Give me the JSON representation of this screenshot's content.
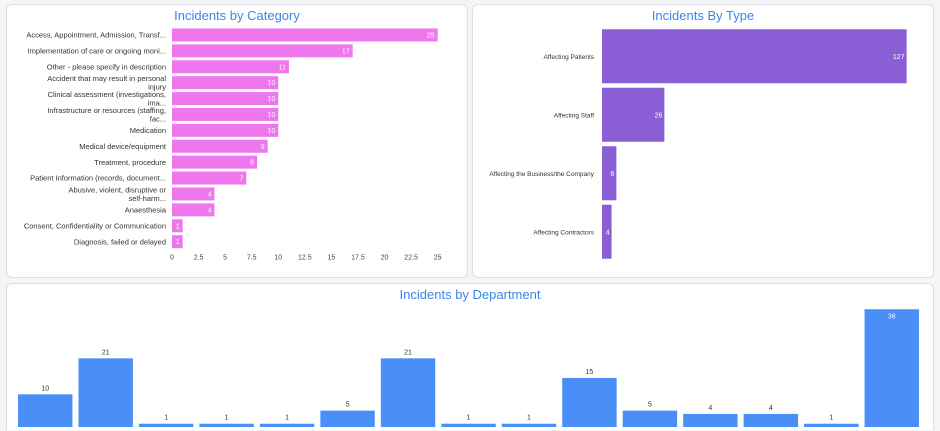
{
  "colors": {
    "category_bar": "#ee77ee",
    "type_bar": "#8a5fd6",
    "dept_bar": "#4a8ff7",
    "title": "#3a86e8"
  },
  "chart_data": [
    {
      "type": "bar",
      "orientation": "horizontal",
      "title": "Incidents by Category",
      "categories": [
        "Access, Appointment, Admission, Transf...",
        "Implementation of care or ongoing moni...",
        "Other - please specify in description",
        "Accident that may result in personal injury",
        "Clinical assessment (investigations, ima...",
        "Infrastructure or resources (staffing, fac...",
        "Medication",
        "Medical device/equipment",
        "Treatment, procedure",
        "Patient Information (records, document...",
        "Abusive, violent, disruptive or self-harm...",
        "Anaesthesia",
        "Consent, Confidentiality or Communication",
        "Diagnosis, failed or delayed"
      ],
      "values": [
        25,
        17,
        11,
        10,
        10,
        10,
        10,
        9,
        8,
        7,
        4,
        4,
        1,
        1
      ],
      "value_labels": [
        "25",
        "17",
        "11",
        "10",
        "10",
        "10",
        "10",
        "9",
        "8",
        "7",
        "4",
        "4",
        "1",
        "1"
      ],
      "xlim": [
        0,
        25.5
      ],
      "xticks": [
        "0",
        "2.5",
        "5",
        "7.5",
        "10",
        "12.5",
        "15",
        "17.5",
        "20",
        "22.5",
        "25"
      ],
      "grid": false
    },
    {
      "type": "bar",
      "orientation": "horizontal",
      "title": "Incidents By Type",
      "categories": [
        "Affecting Patients",
        "Affecting Staff",
        "Affecting the Business/the Company",
        "Affecting Contractors"
      ],
      "values": [
        127,
        26,
        6,
        4
      ],
      "value_labels": [
        "127",
        "26",
        "6",
        "4"
      ],
      "xlim": [
        0,
        128
      ],
      "grid": false
    },
    {
      "type": "bar",
      "orientation": "vertical",
      "title": "Incidents by Department",
      "categories": [
        "",
        "",
        "",
        "",
        "",
        "",
        "",
        "",
        "",
        "",
        "",
        "",
        "",
        "",
        ""
      ],
      "values": [
        10,
        21,
        1,
        1,
        1,
        5,
        21,
        1,
        1,
        15,
        5,
        4,
        4,
        1,
        36
      ],
      "value_labels": [
        "10",
        "21",
        "1",
        "1",
        "1",
        "5",
        "21",
        "1",
        "1",
        "15",
        "5",
        "4",
        "4",
        "1",
        "36"
      ],
      "ylim": [
        0,
        37
      ],
      "grid": false
    }
  ]
}
